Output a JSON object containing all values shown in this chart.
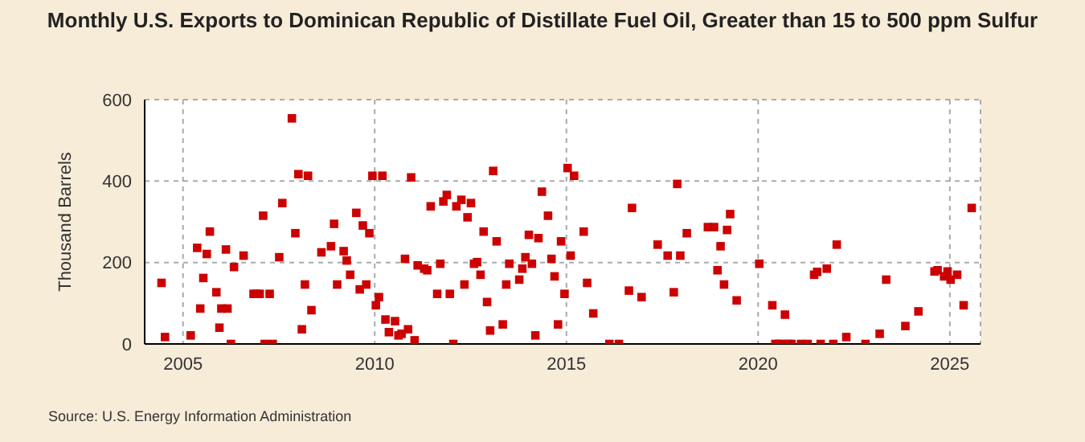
{
  "chart_data": {
    "type": "scatter",
    "title": "Monthly U.S. Exports to Dominican Republic of Distillate Fuel Oil, Greater than 15 to 500 ppm Sulfur",
    "ylabel": "Thousand Barrels",
    "annotations": [
      "Source: U.S. Energy Information Administration"
    ],
    "x": [
      2004.44,
      2004.53,
      2005.2,
      2005.37,
      2005.45,
      2005.53,
      2005.62,
      2005.7,
      2005.87,
      2005.95,
      2006.0,
      2006.16,
      2006.12,
      2006.25,
      2006.33,
      2006.58,
      2006.84,
      2006.92,
      2007.0,
      2007.09,
      2007.13,
      2007.34,
      2007.26,
      2007.51,
      2007.59,
      2007.84,
      2007.93,
      2008.01,
      2008.1,
      2008.18,
      2008.26,
      2008.35,
      2008.61,
      2008.86,
      2008.94,
      2009.02,
      2009.19,
      2009.27,
      2009.36,
      2009.52,
      2009.61,
      2009.69,
      2009.78,
      2009.86,
      2009.94,
      2010.03,
      2010.11,
      2010.2,
      2010.28,
      2010.37,
      2010.53,
      2010.62,
      2010.7,
      2010.79,
      2010.87,
      2010.95,
      2011.04,
      2011.12,
      2011.29,
      2011.37,
      2011.46,
      2011.63,
      2011.71,
      2011.79,
      2011.88,
      2011.96,
      2012.05,
      2012.13,
      2012.26,
      2012.34,
      2012.42,
      2012.51,
      2012.59,
      2012.67,
      2012.76,
      2012.84,
      2012.93,
      2013.01,
      2013.09,
      2013.18,
      2013.34,
      2013.43,
      2013.51,
      2013.77,
      2013.85,
      2013.93,
      2014.02,
      2014.1,
      2014.19,
      2014.27,
      2014.36,
      2014.52,
      2014.61,
      2014.69,
      2014.78,
      2014.86,
      2014.95,
      2015.03,
      2015.11,
      2015.2,
      2015.45,
      2015.54,
      2015.7,
      2016.12,
      2016.37,
      2016.63,
      2016.71,
      2016.96,
      2017.38,
      2017.64,
      2017.8,
      2017.89,
      2017.97,
      2018.14,
      2018.69,
      2018.85,
      2018.94,
      2019.02,
      2019.11,
      2019.19,
      2019.27,
      2019.44,
      2020.03,
      2020.37,
      2020.45,
      2020.54,
      2020.62,
      2020.7,
      2020.79,
      2020.87,
      2021.12,
      2021.29,
      2021.46,
      2021.54,
      2021.63,
      2021.79,
      2021.96,
      2022.05,
      2022.3,
      2022.8,
      2023.17,
      2023.34,
      2023.84,
      2024.18,
      2024.6,
      2024.68,
      2024.85,
      2024.94,
      2025.02,
      2025.19,
      2025.36,
      2025.57
    ],
    "values": [
      150,
      17,
      21,
      236,
      87,
      162,
      221,
      276,
      127,
      40,
      87,
      87,
      232,
      0,
      189,
      217,
      123,
      123,
      123,
      315,
      0,
      0,
      123,
      213,
      346,
      554,
      272,
      417,
      36,
      146,
      413,
      83,
      225,
      240,
      295,
      146,
      228,
      205,
      170,
      322,
      134,
      291,
      146,
      272,
      413,
      95,
      115,
      413,
      60,
      29,
      56,
      21,
      25,
      209,
      36,
      409,
      9,
      193,
      185,
      181,
      338,
      123,
      197,
      350,
      366,
      123,
      0,
      338,
      354,
      146,
      311,
      346,
      197,
      201,
      170,
      276,
      103,
      33,
      425,
      252,
      48,
      146,
      197,
      158,
      185,
      213,
      268,
      197,
      21,
      260,
      374,
      315,
      209,
      166,
      48,
      252,
      123,
      432,
      217,
      413,
      276,
      150,
      75,
      0,
      0,
      131,
      334,
      115,
      244,
      217,
      127,
      393,
      217,
      272,
      287,
      287,
      181,
      240,
      146,
      280,
      319,
      107,
      197,
      95,
      0,
      0,
      0,
      72,
      0,
      0,
      0,
      0,
      170,
      177,
      0,
      185,
      0,
      244,
      17,
      0,
      25,
      158,
      44,
      80,
      178,
      181,
      166,
      178,
      158,
      170,
      95,
      334
    ],
    "color": "#cc0000",
    "marker": "square",
    "xlim": [
      2004,
      2025.8
    ],
    "xticks": [
      2005,
      2010,
      2015,
      2020,
      2025
    ],
    "ylim": [
      0,
      600
    ],
    "yticks": [
      0,
      200,
      400,
      600
    ],
    "grid": true
  }
}
